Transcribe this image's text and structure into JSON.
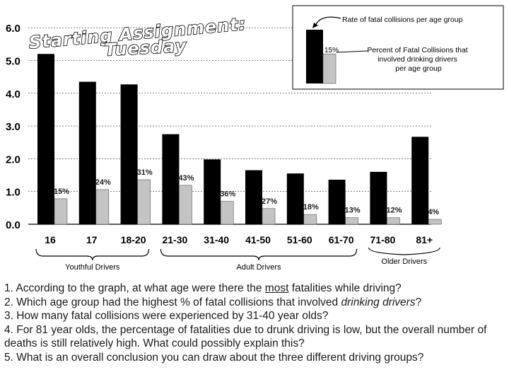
{
  "chart_data": {
    "type": "bar",
    "categories": [
      "16",
      "17",
      "18-20",
      "21-30",
      "31-40",
      "41-50",
      "51-60",
      "61-70",
      "71-80",
      "81+"
    ],
    "series": [
      {
        "name": "Rate of fatal collisions per age group",
        "values": [
          5.2,
          4.35,
          4.27,
          2.75,
          1.98,
          1.65,
          1.55,
          1.36,
          1.6,
          2.67
        ],
        "color": "#000000"
      },
      {
        "name": "Percent of Fatal Collisions that involved drinking drivers per age group",
        "values": [
          0.78,
          1.06,
          1.36,
          1.19,
          0.7,
          0.48,
          0.3,
          0.2,
          0.2,
          0.15
        ],
        "color": "#c4c4c4"
      }
    ],
    "pct_labels": [
      "15%",
      "24%",
      "31%",
      "43%",
      "36%",
      "27%",
      "18%",
      "13%",
      "12%",
      "4%"
    ],
    "yticks": [
      "0.0",
      "1.0",
      "2.0",
      "3.0",
      "4.0",
      "5.0",
      "6.0"
    ],
    "ylim": [
      0,
      6
    ],
    "groups": [
      "Youthful Drivers",
      "Adult Drivers",
      "Older Drivers"
    ],
    "overlay_title": [
      "Starting Assignment:",
      "Tuesday"
    ],
    "legend": {
      "rate_label": "Rate of fatal collisions per age group",
      "pct_value": "15%",
      "pct_label": [
        "Percent of Fatal Collisions that",
        "involved drinking drivers",
        "per age group"
      ],
      "rate_value": 5.8,
      "pct_bar_value": 5.1
    }
  },
  "questions": {
    "q1_before": "1.  According to the graph, at what age were there the ",
    "q1_under": "most",
    "q1_after": " fatalities while driving?",
    "q2_before": "2.  Which age group had the highest % of fatal collisions that involved ",
    "q2_italic": "drinking drivers",
    "q2_after": "?",
    "q3": "3.  How many fatal collisions were experienced by 31-40 year olds?",
    "q4": "4.  For 81 year olds, the percentage of fatalities due to drunk driving is low, but the overall number of deaths is still relatively high. What could possibly explain this?",
    "q5": "5.   What is an overall conclusion you can draw about the three different driving groups?"
  }
}
